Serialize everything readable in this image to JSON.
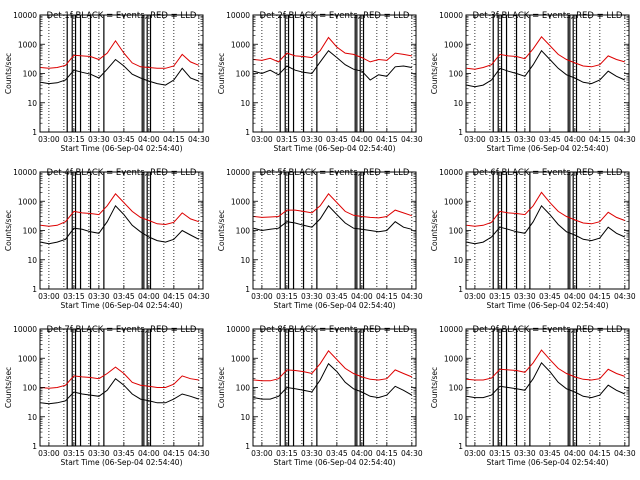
{
  "figure": {
    "ylabel": "Counts/sec",
    "xticks": [
      "03:00",
      "03:15",
      "03:30",
      "03:45",
      "04:00",
      "04:15",
      "04:30"
    ],
    "yticks": [
      "1",
      "10",
      "100",
      "1000",
      "10000"
    ],
    "colors": {
      "black_series": "#000000",
      "red_series": "#dd0000",
      "axes": "#000000",
      "background": "#ffffff"
    }
  },
  "chart_data": [
    {
      "type": "line",
      "title": "Det 1f BLACK = Events, RED = LLD",
      "xlabel": "Start Time (06-Sep-04 02:54:40)",
      "ylabel": "Counts/sec",
      "yscale": "log",
      "ylim": [
        1,
        10000
      ],
      "xlim": [
        "02:54:40",
        "04:32:30"
      ],
      "x_tick_labels": [
        "03:00",
        "03:15",
        "03:30",
        "03:45",
        "04:00",
        "04:15",
        "04:30"
      ],
      "vertical_markers_solid": [
        "03:11",
        "03:14",
        "03:16",
        "03:19",
        "03:25",
        "03:33",
        "03:56",
        "03:57",
        "03:59",
        "04:01"
      ],
      "vertical_markers_dotted": [
        "03:00",
        "03:09",
        "03:15",
        "03:24",
        "03:30",
        "03:45",
        "04:00",
        "04:09",
        "04:15",
        "04:30"
      ],
      "x": [
        "02:55",
        "03:00",
        "03:05",
        "03:10",
        "03:15",
        "03:20",
        "03:25",
        "03:30",
        "03:35",
        "03:40",
        "03:45",
        "03:50",
        "03:55",
        "04:00",
        "04:05",
        "04:10",
        "04:15",
        "04:20",
        "04:25",
        "04:30"
      ],
      "series": [
        {
          "name": "Events",
          "color": "#000000",
          "values": [
            50,
            45,
            48,
            60,
            130,
            110,
            95,
            70,
            140,
            300,
            180,
            95,
            70,
            55,
            45,
            40,
            60,
            150,
            70,
            55
          ]
        },
        {
          "name": "LLD",
          "color": "#dd0000",
          "values": [
            160,
            150,
            160,
            190,
            420,
            400,
            380,
            300,
            500,
            1300,
            500,
            230,
            170,
            160,
            150,
            150,
            180,
            450,
            250,
            190
          ]
        }
      ]
    },
    {
      "type": "line",
      "title": "Det 2f BLACK = Events, RED = LLD",
      "xlabel": "Start Time (06-Sep-04 02:54:40)",
      "ylabel": "Counts/sec",
      "yscale": "log",
      "ylim": [
        1,
        10000
      ],
      "xlim": [
        "02:54:40",
        "04:32:30"
      ],
      "x_tick_labels": [
        "03:00",
        "03:15",
        "03:30",
        "03:45",
        "04:00",
        "04:15",
        "04:30"
      ],
      "vertical_markers_solid": [
        "03:11",
        "03:14",
        "03:16",
        "03:19",
        "03:25",
        "03:33",
        "03:56",
        "03:57",
        "03:59",
        "04:01"
      ],
      "vertical_markers_dotted": [
        "03:00",
        "03:09",
        "03:15",
        "03:24",
        "03:30",
        "03:45",
        "04:00",
        "04:09",
        "04:15",
        "04:30"
      ],
      "x": [
        "02:55",
        "03:00",
        "03:05",
        "03:10",
        "03:15",
        "03:20",
        "03:25",
        "03:30",
        "03:35",
        "03:40",
        "03:45",
        "03:50",
        "03:55",
        "04:00",
        "04:05",
        "04:10",
        "04:15",
        "04:20",
        "04:25",
        "04:30"
      ],
      "series": [
        {
          "name": "Events",
          "color": "#000000",
          "values": [
            120,
            100,
            130,
            90,
            180,
            130,
            110,
            100,
            250,
            600,
            350,
            200,
            140,
            120,
            60,
            90,
            80,
            170,
            180,
            160
          ]
        },
        {
          "name": "LLD",
          "color": "#dd0000",
          "values": [
            300,
            280,
            330,
            250,
            500,
            400,
            380,
            350,
            600,
            1700,
            800,
            500,
            450,
            350,
            250,
            300,
            280,
            500,
            450,
            400
          ]
        }
      ]
    },
    {
      "type": "line",
      "title": "Det 3f BLACK = Events, RED = LLD",
      "xlabel": "Start Time (06-Sep-04 02:54:40)",
      "ylabel": "Counts/sec",
      "yscale": "log",
      "ylim": [
        1,
        10000
      ],
      "xlim": [
        "02:54:40",
        "04:32:30"
      ],
      "x_tick_labels": [
        "03:00",
        "03:15",
        "03:30",
        "03:45",
        "04:00",
        "04:15",
        "04:30"
      ],
      "vertical_markers_solid": [
        "03:11",
        "03:14",
        "03:16",
        "03:19",
        "03:25",
        "03:33",
        "03:56",
        "03:57",
        "03:59",
        "04:01"
      ],
      "vertical_markers_dotted": [
        "03:00",
        "03:09",
        "03:15",
        "03:24",
        "03:30",
        "03:45",
        "04:00",
        "04:09",
        "04:15",
        "04:30"
      ],
      "x": [
        "02:55",
        "03:00",
        "03:05",
        "03:10",
        "03:15",
        "03:20",
        "03:25",
        "03:30",
        "03:35",
        "03:40",
        "03:45",
        "03:50",
        "03:55",
        "04:00",
        "04:05",
        "04:10",
        "04:15",
        "04:20",
        "04:25",
        "04:30"
      ],
      "series": [
        {
          "name": "Events",
          "color": "#000000",
          "values": [
            40,
            35,
            40,
            60,
            150,
            120,
            100,
            80,
            200,
            600,
            300,
            150,
            90,
            70,
            50,
            45,
            60,
            120,
            80,
            60
          ]
        },
        {
          "name": "LLD",
          "color": "#dd0000",
          "values": [
            150,
            140,
            160,
            200,
            450,
            400,
            380,
            320,
            700,
            1800,
            900,
            450,
            300,
            230,
            180,
            170,
            200,
            400,
            300,
            250
          ]
        }
      ]
    },
    {
      "type": "line",
      "title": "Det 4f BLACK = Events, RED = LLD",
      "xlabel": "Start Time (06-Sep-04 02:54:40)",
      "ylabel": "Counts/sec",
      "yscale": "log",
      "ylim": [
        1,
        10000
      ],
      "xlim": [
        "02:54:40",
        "04:32:30"
      ],
      "x_tick_labels": [
        "03:00",
        "03:15",
        "03:30",
        "03:45",
        "04:00",
        "04:15",
        "04:30"
      ],
      "vertical_markers_solid": [
        "03:11",
        "03:14",
        "03:16",
        "03:19",
        "03:25",
        "03:33",
        "03:56",
        "03:57",
        "03:59",
        "04:01"
      ],
      "vertical_markers_dotted": [
        "03:00",
        "03:09",
        "03:15",
        "03:24",
        "03:30",
        "03:45",
        "04:00",
        "04:09",
        "04:15",
        "04:30"
      ],
      "x": [
        "02:55",
        "03:00",
        "03:05",
        "03:10",
        "03:15",
        "03:20",
        "03:25",
        "03:30",
        "03:35",
        "03:40",
        "03:45",
        "03:50",
        "03:55",
        "04:00",
        "04:05",
        "04:10",
        "04:15",
        "04:20",
        "04:25",
        "04:30"
      ],
      "series": [
        {
          "name": "Events",
          "color": "#000000",
          "values": [
            40,
            35,
            40,
            50,
            120,
            110,
            90,
            80,
            200,
            700,
            350,
            150,
            90,
            60,
            45,
            40,
            50,
            100,
            70,
            50
          ]
        },
        {
          "name": "LLD",
          "color": "#dd0000",
          "values": [
            150,
            140,
            150,
            200,
            450,
            400,
            380,
            350,
            700,
            1800,
            900,
            450,
            280,
            220,
            170,
            160,
            190,
            400,
            250,
            200
          ]
        }
      ]
    },
    {
      "type": "line",
      "title": "Det 5f BLACK = Events, RED = LLD",
      "xlabel": "Start Time (06-Sep-04 02:54:40)",
      "ylabel": "Counts/sec",
      "yscale": "log",
      "ylim": [
        1,
        10000
      ],
      "xlim": [
        "02:54:40",
        "04:32:30"
      ],
      "x_tick_labels": [
        "03:00",
        "03:15",
        "03:30",
        "03:45",
        "04:00",
        "04:15",
        "04:30"
      ],
      "vertical_markers_solid": [
        "03:11",
        "03:14",
        "03:16",
        "03:19",
        "03:25",
        "03:33",
        "03:56",
        "03:57",
        "03:59",
        "04:01"
      ],
      "vertical_markers_dotted": [
        "03:00",
        "03:09",
        "03:15",
        "03:24",
        "03:30",
        "03:45",
        "04:00",
        "04:09",
        "04:15",
        "04:30"
      ],
      "x": [
        "02:55",
        "03:00",
        "03:05",
        "03:10",
        "03:15",
        "03:20",
        "03:25",
        "03:30",
        "03:35",
        "03:40",
        "03:45",
        "03:50",
        "03:55",
        "04:00",
        "04:05",
        "04:10",
        "04:15",
        "04:20",
        "04:25",
        "04:30"
      ],
      "series": [
        {
          "name": "Events",
          "color": "#000000",
          "values": [
            120,
            100,
            110,
            120,
            200,
            180,
            150,
            130,
            250,
            700,
            350,
            180,
            120,
            110,
            100,
            90,
            100,
            200,
            130,
            110
          ]
        },
        {
          "name": "LLD",
          "color": "#dd0000",
          "values": [
            300,
            280,
            290,
            300,
            500,
            500,
            450,
            400,
            700,
            1800,
            900,
            450,
            330,
            300,
            280,
            270,
            300,
            500,
            400,
            320
          ]
        }
      ]
    },
    {
      "type": "line",
      "title": "Det 6f BLACK = Events, RED = LLD",
      "xlabel": "Start Time (06-Sep-04 02:54:40)",
      "ylabel": "Counts/sec",
      "yscale": "log",
      "ylim": [
        1,
        10000
      ],
      "xlim": [
        "02:54:40",
        "04:32:30"
      ],
      "x_tick_labels": [
        "03:00",
        "03:15",
        "03:30",
        "03:45",
        "04:00",
        "04:15",
        "04:30"
      ],
      "vertical_markers_solid": [
        "03:11",
        "03:14",
        "03:16",
        "03:19",
        "03:25",
        "03:33",
        "03:56",
        "03:57",
        "03:59",
        "04:01"
      ],
      "vertical_markers_dotted": [
        "03:00",
        "03:09",
        "03:15",
        "03:24",
        "03:30",
        "03:45",
        "04:00",
        "04:09",
        "04:15",
        "04:30"
      ],
      "x": [
        "02:55",
        "03:00",
        "03:05",
        "03:10",
        "03:15",
        "03:20",
        "03:25",
        "03:30",
        "03:35",
        "03:40",
        "03:45",
        "03:50",
        "03:55",
        "04:00",
        "04:05",
        "04:10",
        "04:15",
        "04:20",
        "04:25",
        "04:30"
      ],
      "series": [
        {
          "name": "Events",
          "color": "#000000",
          "values": [
            40,
            35,
            40,
            60,
            130,
            110,
            90,
            80,
            200,
            700,
            350,
            160,
            90,
            70,
            50,
            45,
            55,
            130,
            80,
            60
          ]
        },
        {
          "name": "LLD",
          "color": "#dd0000",
          "values": [
            150,
            140,
            150,
            190,
            450,
            400,
            380,
            350,
            700,
            2000,
            900,
            450,
            300,
            230,
            180,
            170,
            200,
            420,
            280,
            220
          ]
        }
      ]
    },
    {
      "type": "line",
      "title": "Det 7f BLACK = Events, RED = LLD",
      "xlabel": "Start Time (06-Sep-04 02:54:40)",
      "ylabel": "Counts/sec",
      "yscale": "log",
      "ylim": [
        1,
        10000
      ],
      "xlim": [
        "02:54:40",
        "04:32:30"
      ],
      "x_tick_labels": [
        "03:00",
        "03:15",
        "03:30",
        "03:45",
        "04:00",
        "04:15",
        "04:30"
      ],
      "vertical_markers_solid": [
        "03:11",
        "03:14",
        "03:16",
        "03:19",
        "03:25",
        "03:33",
        "03:56",
        "03:57",
        "03:59",
        "04:01"
      ],
      "vertical_markers_dotted": [
        "03:00",
        "03:09",
        "03:15",
        "03:24",
        "03:30",
        "03:45",
        "04:00",
        "04:09",
        "04:15",
        "04:30"
      ],
      "x": [
        "02:55",
        "03:00",
        "03:05",
        "03:10",
        "03:15",
        "03:20",
        "03:25",
        "03:30",
        "03:35",
        "03:40",
        "03:45",
        "03:50",
        "03:55",
        "04:00",
        "04:05",
        "04:10",
        "04:15",
        "04:20",
        "04:25",
        "04:30"
      ],
      "series": [
        {
          "name": "Events",
          "color": "#000000",
          "values": [
            30,
            28,
            30,
            35,
            70,
            60,
            55,
            50,
            80,
            200,
            120,
            60,
            40,
            35,
            30,
            30,
            40,
            60,
            50,
            40
          ]
        },
        {
          "name": "LLD",
          "color": "#dd0000",
          "values": [
            100,
            95,
            100,
            120,
            250,
            230,
            220,
            200,
            300,
            500,
            300,
            150,
            120,
            110,
            100,
            100,
            130,
            250,
            200,
            180
          ]
        }
      ]
    },
    {
      "type": "line",
      "title": "Det 8f BLACK = Events, RED = LLD",
      "xlabel": "Start Time (06-Sep-04 02:54:40)",
      "ylabel": "Counts/sec",
      "yscale": "log",
      "ylim": [
        1,
        10000
      ],
      "xlim": [
        "02:54:40",
        "04:32:30"
      ],
      "x_tick_labels": [
        "03:00",
        "03:15",
        "03:30",
        "03:45",
        "04:00",
        "04:15",
        "04:30"
      ],
      "vertical_markers_solid": [
        "03:11",
        "03:14",
        "03:16",
        "03:19",
        "03:25",
        "03:33",
        "03:56",
        "03:57",
        "03:59",
        "04:01"
      ],
      "vertical_markers_dotted": [
        "03:00",
        "03:09",
        "03:15",
        "03:24",
        "03:30",
        "03:45",
        "04:00",
        "04:09",
        "04:15",
        "04:30"
      ],
      "x": [
        "02:55",
        "03:00",
        "03:05",
        "03:10",
        "03:15",
        "03:20",
        "03:25",
        "03:30",
        "03:35",
        "03:40",
        "03:45",
        "03:50",
        "03:55",
        "04:00",
        "04:05",
        "04:10",
        "04:15",
        "04:20",
        "04:25",
        "04:30"
      ],
      "series": [
        {
          "name": "Events",
          "color": "#000000",
          "values": [
            45,
            40,
            40,
            50,
            100,
            90,
            80,
            70,
            180,
            650,
            350,
            150,
            90,
            70,
            50,
            45,
            55,
            110,
            80,
            55
          ]
        },
        {
          "name": "LLD",
          "color": "#dd0000",
          "values": [
            180,
            170,
            170,
            200,
            400,
            380,
            350,
            300,
            650,
            1800,
            900,
            450,
            300,
            230,
            190,
            180,
            200,
            400,
            300,
            230
          ]
        }
      ]
    },
    {
      "type": "line",
      "title": "Det 9f BLACK = Events, RED = LLD",
      "xlabel": "Start Time (06-Sep-04 02:54:40)",
      "ylabel": "Counts/sec",
      "yscale": "log",
      "ylim": [
        1,
        10000
      ],
      "xlim": [
        "02:54:40",
        "04:32:30"
      ],
      "x_tick_labels": [
        "03:00",
        "03:15",
        "03:30",
        "03:45",
        "04:00",
        "04:15",
        "04:30"
      ],
      "vertical_markers_solid": [
        "03:11",
        "03:14",
        "03:16",
        "03:19",
        "03:25",
        "03:33",
        "03:56",
        "03:57",
        "03:59",
        "04:01"
      ],
      "vertical_markers_dotted": [
        "03:00",
        "03:09",
        "03:15",
        "03:24",
        "03:30",
        "03:45",
        "04:00",
        "04:09",
        "04:15",
        "04:30"
      ],
      "x": [
        "02:55",
        "03:00",
        "03:05",
        "03:10",
        "03:15",
        "03:20",
        "03:25",
        "03:30",
        "03:35",
        "03:40",
        "03:45",
        "03:50",
        "03:55",
        "04:00",
        "04:05",
        "04:10",
        "04:15",
        "04:20",
        "04:25",
        "04:30"
      ],
      "series": [
        {
          "name": "Events",
          "color": "#000000",
          "values": [
            50,
            45,
            45,
            55,
            110,
            100,
            90,
            80,
            200,
            700,
            350,
            150,
            90,
            70,
            50,
            45,
            55,
            120,
            80,
            60
          ]
        },
        {
          "name": "LLD",
          "color": "#dd0000",
          "values": [
            190,
            180,
            180,
            210,
            420,
            400,
            380,
            330,
            700,
            1900,
            900,
            450,
            300,
            230,
            190,
            180,
            200,
            420,
            300,
            240
          ]
        }
      ]
    }
  ]
}
